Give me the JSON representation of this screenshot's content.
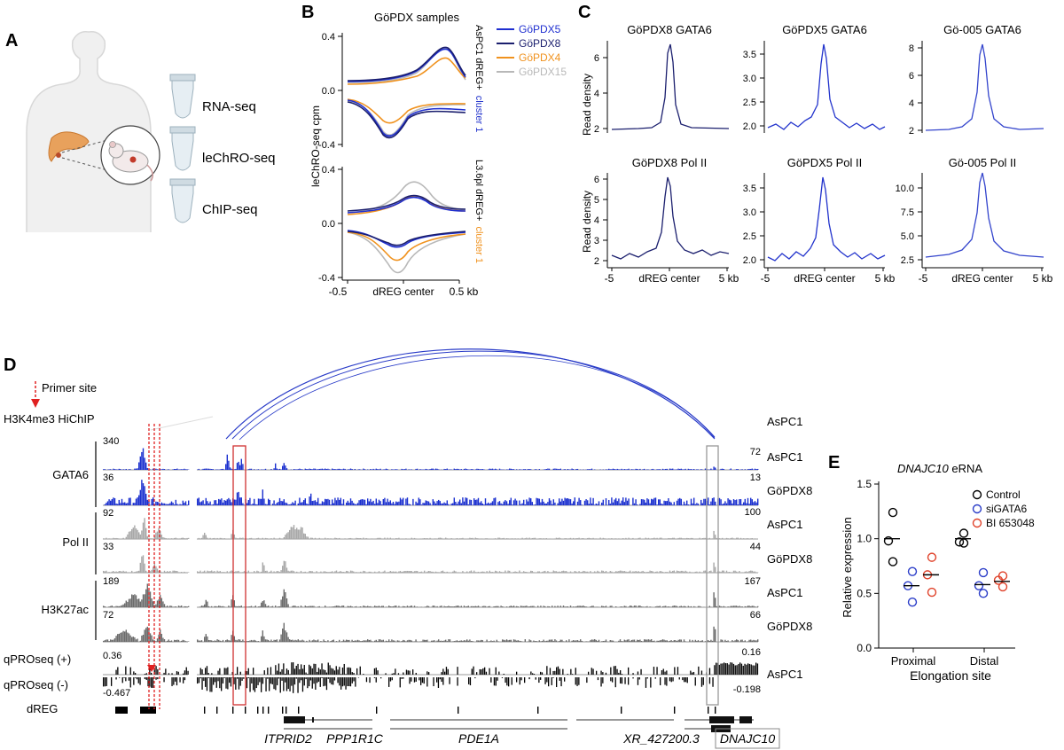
{
  "panels": {
    "a": {
      "label": "A",
      "assays": [
        "RNA-seq",
        "leChRO-seq",
        "ChIP-seq"
      ]
    },
    "b": {
      "label": "B",
      "title": "GöPDX samples",
      "ylabel": "leChRO-seq cpm",
      "xticks": [
        "-0.5",
        "dREG center",
        "0.5 kb"
      ],
      "top_yticks": [
        "0.4",
        "0.0",
        "-0.4"
      ],
      "bottom_yticks": [
        "0.4",
        "0.0",
        "-0.4"
      ],
      "top_side_label": "AsPC1 dREG+",
      "top_side_cluster": "cluster 1",
      "bottom_side_label": "L3.6pl dREG+",
      "bottom_side_cluster": "cluster 1",
      "legend": [
        {
          "name": "GöPDX5",
          "color": "#1f2fd0"
        },
        {
          "name": "GöPDX8",
          "color": "#1b1f6e"
        },
        {
          "name": "GöPDX4",
          "color": "#f0921e"
        },
        {
          "name": "GöPDX15",
          "color": "#b8b8b8"
        }
      ],
      "cluster_colors": {
        "top": "#2233cc",
        "bottom": "#f0921e"
      }
    },
    "c": {
      "label": "C",
      "ylabel": "Read density",
      "xticks": [
        "-5",
        "dREG center",
        "5 kb"
      ],
      "plots": [
        {
          "title": "GöPDX8 GATA6",
          "yticks": [
            "6",
            "4",
            "2"
          ],
          "color": "#1b1f6e"
        },
        {
          "title": "GöPDX5 GATA6",
          "yticks": [
            "3.5",
            "3.0",
            "2.5",
            "2.0"
          ],
          "color": "#2233cc"
        },
        {
          "title": "Gö-005 GATA6",
          "yticks": [
            "8",
            "6",
            "4",
            "2"
          ],
          "color": "#3344cc"
        },
        {
          "title": "GöPDX8 Pol II",
          "yticks": [
            "6",
            "5",
            "4",
            "3",
            "2"
          ],
          "color": "#1b1f6e"
        },
        {
          "title": "GöPDX5 Pol II",
          "yticks": [
            "3.5",
            "3.0",
            "2.5",
            "2.0"
          ],
          "color": "#2233cc"
        },
        {
          "title": "Gö-005 Pol II",
          "yticks": [
            "10.0",
            "7.5",
            "5.0",
            "2.5"
          ],
          "color": "#3344cc"
        }
      ]
    },
    "d": {
      "label": "D",
      "primer_label": "Primer site",
      "hichip_label": "H3K4me3 HiChIP",
      "groups": [
        "GATA6",
        "Pol II",
        "H3K27ac"
      ],
      "left_scales": [
        "340",
        "36",
        "92",
        "33",
        "189",
        "72",
        "0.36",
        "-0.467"
      ],
      "right_scales": [
        "72",
        "13",
        "100",
        "44",
        "167",
        "66",
        "0.16",
        "-0.198"
      ],
      "track_samples": [
        "AsPC1",
        "AsPC1",
        "GöPDX8",
        "AsPC1",
        "GöPDX8",
        "AsPC1",
        "GöPDX8",
        "AsPC1"
      ],
      "qpro_plus": "qPROseq (+)",
      "qpro_minus": "qPROseq (-)",
      "dreg": "dREG",
      "genes": [
        "ITPRID2",
        "PPP1R1C",
        "PDE1A",
        "XR_427200.3",
        "DNAJC10"
      ]
    },
    "e": {
      "label": "E",
      "title": "DNAJC10",
      "title_suffix": " eRNA",
      "ylabel": "Relative expression",
      "xlabel": "Elongation site"
    }
  },
  "chart_data": {
    "type": "scatter",
    "title": "DNAJC10 eRNA",
    "xlabel": "Elongation site",
    "ylabel": "Relative expression",
    "categories": [
      "Proximal",
      "Distal"
    ],
    "ylim": [
      0,
      1.5
    ],
    "yticks": [
      "0.0",
      "0.5",
      "1.0",
      "1.5"
    ],
    "series": [
      {
        "name": "Control",
        "color": "#000000",
        "points": [
          [
            1.24,
            0.98,
            0.79
          ],
          [
            1.05,
            0.97,
            0.96
          ]
        ],
        "means": [
          1.0,
          1.0
        ]
      },
      {
        "name": "siGATA6",
        "color": "#2a3cc8",
        "points": [
          [
            0.7,
            0.57,
            0.42
          ],
          [
            0.69,
            0.57,
            0.5
          ]
        ],
        "means": [
          0.57,
          0.58
        ]
      },
      {
        "name": "BI 653048",
        "color": "#e0422a",
        "points": [
          [
            0.83,
            0.67,
            0.51
          ],
          [
            0.66,
            0.62,
            0.56
          ]
        ],
        "means": [
          0.67,
          0.61
        ]
      }
    ]
  }
}
